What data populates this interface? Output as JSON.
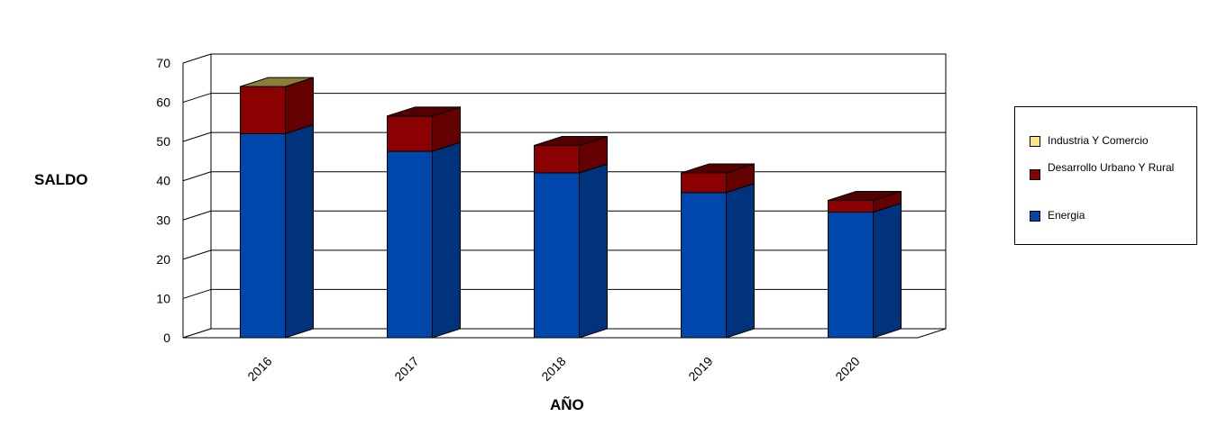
{
  "chart_data": {
    "type": "bar",
    "stacked": true,
    "three_d": true,
    "categories": [
      "2016",
      "2017",
      "2018",
      "2019",
      "2020"
    ],
    "series": [
      {
        "name": "Energia",
        "values": [
          52,
          47.5,
          42,
          37,
          32
        ],
        "color": "#0047AB"
      },
      {
        "name": "Desarrollo Urbano Y Rural",
        "values": [
          12,
          9,
          7,
          5,
          3
        ],
        "color": "#8B0000"
      },
      {
        "name": "Industria Y Comercio",
        "values": [
          0,
          0,
          0,
          0,
          0
        ],
        "color": "#FFE680"
      }
    ],
    "xlabel": "AÑO",
    "ylabel": "SALDO",
    "ylim": [
      0,
      70
    ],
    "yticks": [
      "0",
      "10",
      "20",
      "30",
      "40",
      "50",
      "60",
      "70"
    ],
    "grid": true,
    "legend_position": "right"
  },
  "legend": {
    "items": [
      "Industria Y Comercio",
      "Desarrollo Urbano Y Rural",
      "Energia"
    ]
  }
}
